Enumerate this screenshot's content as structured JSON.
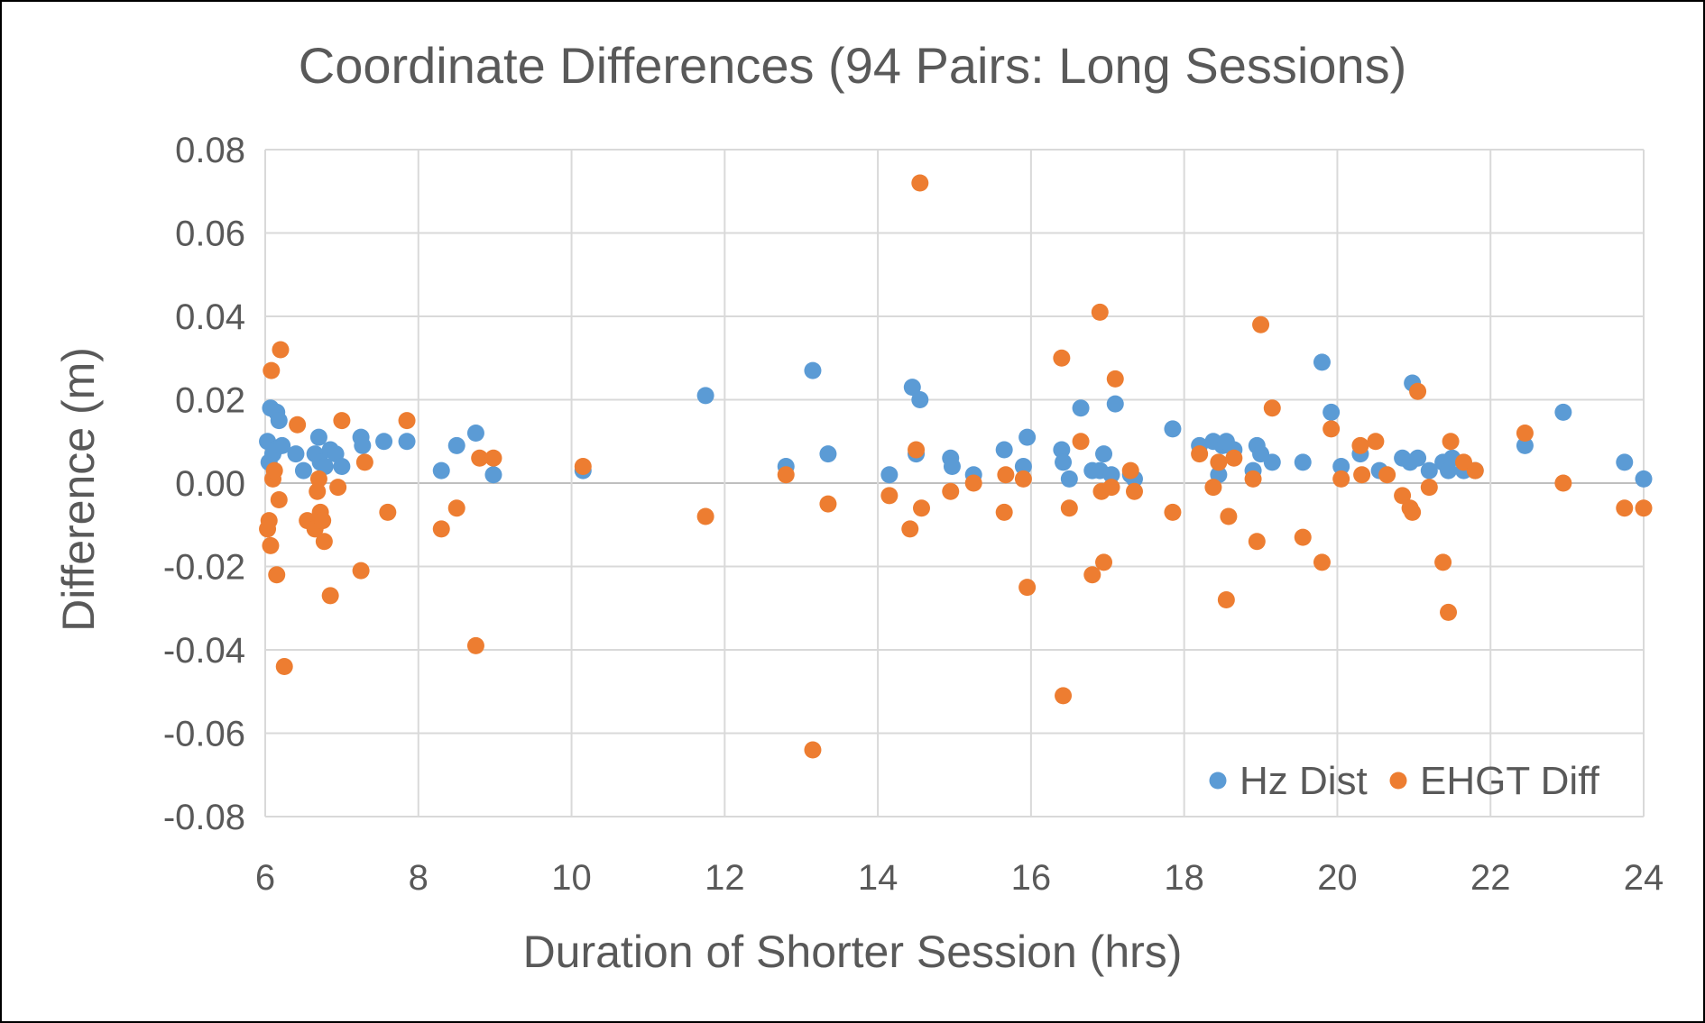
{
  "chart_data": {
    "type": "scatter",
    "title": "Coordinate Differences (94 Pairs: Long Sessions)",
    "xlabel": "Duration of Shorter Session (hrs)",
    "ylabel": "Difference (m)",
    "xlim": [
      6,
      24
    ],
    "ylim": [
      -0.08,
      0.08
    ],
    "x_ticks": [
      "6",
      "8",
      "10",
      "12",
      "14",
      "16",
      "18",
      "20",
      "22",
      "24"
    ],
    "y_ticks": [
      "0.08",
      "0.06",
      "0.04",
      "0.02",
      "0.00",
      "-0.02",
      "-0.04",
      "-0.06",
      "-0.08"
    ],
    "grid": true,
    "legend_position": "bottom-right",
    "series": [
      {
        "name": "Hz Dist",
        "color": "#5b9bd5",
        "points": [
          [
            6.03,
            0.01
          ],
          [
            6.05,
            0.005
          ],
          [
            6.07,
            0.018
          ],
          [
            6.1,
            0.007
          ],
          [
            6.12,
            0.008
          ],
          [
            6.15,
            0.017
          ],
          [
            6.18,
            0.015
          ],
          [
            6.22,
            0.009
          ],
          [
            6.4,
            0.007
          ],
          [
            6.5,
            0.003
          ],
          [
            6.65,
            0.007
          ],
          [
            6.7,
            0.011
          ],
          [
            6.72,
            0.005
          ],
          [
            6.78,
            0.004
          ],
          [
            6.85,
            0.008
          ],
          [
            6.92,
            0.007
          ],
          [
            7.0,
            0.004
          ],
          [
            7.25,
            0.011
          ],
          [
            7.27,
            0.009
          ],
          [
            7.55,
            0.01
          ],
          [
            7.85,
            0.01
          ],
          [
            8.3,
            0.003
          ],
          [
            8.5,
            0.009
          ],
          [
            8.75,
            0.012
          ],
          [
            8.98,
            0.002
          ],
          [
            10.15,
            0.003
          ],
          [
            11.75,
            0.021
          ],
          [
            12.8,
            0.004
          ],
          [
            13.15,
            0.027
          ],
          [
            13.35,
            0.007
          ],
          [
            14.15,
            0.002
          ],
          [
            14.45,
            0.023
          ],
          [
            14.5,
            0.007
          ],
          [
            14.55,
            0.02
          ],
          [
            14.95,
            0.006
          ],
          [
            14.97,
            0.004
          ],
          [
            15.25,
            0.002
          ],
          [
            15.65,
            0.008
          ],
          [
            15.9,
            0.004
          ],
          [
            15.95,
            0.011
          ],
          [
            16.4,
            0.008
          ],
          [
            16.42,
            0.005
          ],
          [
            16.5,
            0.001
          ],
          [
            16.65,
            0.018
          ],
          [
            16.8,
            0.003
          ],
          [
            16.9,
            0.003
          ],
          [
            16.95,
            0.007
          ],
          [
            17.05,
            0.002
          ],
          [
            17.1,
            0.019
          ],
          [
            17.3,
            0.002
          ],
          [
            17.35,
            0.001
          ],
          [
            17.85,
            0.013
          ],
          [
            18.2,
            0.009
          ],
          [
            18.38,
            0.01
          ],
          [
            18.45,
            0.002
          ],
          [
            18.5,
            0.009
          ],
          [
            18.55,
            0.01
          ],
          [
            18.65,
            0.008
          ],
          [
            18.9,
            0.003
          ],
          [
            18.95,
            0.009
          ],
          [
            19.0,
            0.007
          ],
          [
            19.15,
            0.005
          ],
          [
            19.55,
            0.005
          ],
          [
            19.8,
            0.029
          ],
          [
            19.92,
            0.017
          ],
          [
            20.05,
            0.004
          ],
          [
            20.3,
            0.007
          ],
          [
            20.55,
            0.003
          ],
          [
            20.85,
            0.006
          ],
          [
            20.95,
            0.005
          ],
          [
            20.98,
            0.024
          ],
          [
            21.05,
            0.006
          ],
          [
            21.2,
            0.003
          ],
          [
            21.38,
            0.005
          ],
          [
            21.45,
            0.003
          ],
          [
            21.5,
            0.006
          ],
          [
            21.65,
            0.003
          ],
          [
            21.8,
            0.003
          ],
          [
            22.45,
            0.009
          ],
          [
            22.95,
            0.017
          ],
          [
            23.75,
            0.005
          ],
          [
            24.0,
            0.001
          ]
        ]
      },
      {
        "name": "EHGT Diff",
        "color": "#ed7d31",
        "points": [
          [
            6.03,
            -0.011
          ],
          [
            6.05,
            -0.009
          ],
          [
            6.07,
            -0.015
          ],
          [
            6.08,
            0.027
          ],
          [
            6.1,
            0.001
          ],
          [
            6.12,
            0.003
          ],
          [
            6.15,
            -0.022
          ],
          [
            6.18,
            -0.004
          ],
          [
            6.2,
            0.032
          ],
          [
            6.25,
            -0.044
          ],
          [
            6.42,
            0.014
          ],
          [
            6.55,
            -0.009
          ],
          [
            6.65,
            -0.011
          ],
          [
            6.68,
            -0.002
          ],
          [
            6.7,
            0.001
          ],
          [
            6.72,
            -0.007
          ],
          [
            6.75,
            -0.009
          ],
          [
            6.77,
            -0.014
          ],
          [
            6.85,
            -0.027
          ],
          [
            6.95,
            -0.001
          ],
          [
            7.0,
            0.015
          ],
          [
            7.25,
            -0.021
          ],
          [
            7.3,
            0.005
          ],
          [
            7.6,
            -0.007
          ],
          [
            7.85,
            0.015
          ],
          [
            8.3,
            -0.011
          ],
          [
            8.5,
            -0.006
          ],
          [
            8.75,
            -0.039
          ],
          [
            8.8,
            0.006
          ],
          [
            8.98,
            0.006
          ],
          [
            10.15,
            0.004
          ],
          [
            11.75,
            -0.008
          ],
          [
            12.8,
            0.002
          ],
          [
            13.15,
            -0.064
          ],
          [
            13.35,
            -0.005
          ],
          [
            14.15,
            -0.003
          ],
          [
            14.42,
            -0.011
          ],
          [
            14.5,
            0.008
          ],
          [
            14.55,
            0.072
          ],
          [
            14.57,
            -0.006
          ],
          [
            14.95,
            -0.002
          ],
          [
            15.25,
            0.0
          ],
          [
            15.65,
            -0.007
          ],
          [
            15.67,
            0.002
          ],
          [
            15.9,
            0.001
          ],
          [
            15.95,
            -0.025
          ],
          [
            16.4,
            0.03
          ],
          [
            16.42,
            -0.051
          ],
          [
            16.5,
            -0.006
          ],
          [
            16.65,
            0.01
          ],
          [
            16.8,
            -0.022
          ],
          [
            16.9,
            0.041
          ],
          [
            16.92,
            -0.002
          ],
          [
            16.95,
            -0.019
          ],
          [
            17.05,
            -0.001
          ],
          [
            17.1,
            0.025
          ],
          [
            17.3,
            0.003
          ],
          [
            17.35,
            -0.002
          ],
          [
            17.85,
            -0.007
          ],
          [
            18.2,
            0.007
          ],
          [
            18.38,
            -0.001
          ],
          [
            18.45,
            0.005
          ],
          [
            18.55,
            -0.028
          ],
          [
            18.58,
            -0.008
          ],
          [
            18.65,
            0.006
          ],
          [
            18.9,
            0.001
          ],
          [
            18.95,
            -0.014
          ],
          [
            19.0,
            0.038
          ],
          [
            19.15,
            0.018
          ],
          [
            19.55,
            -0.013
          ],
          [
            19.8,
            -0.019
          ],
          [
            19.92,
            0.013
          ],
          [
            20.05,
            0.001
          ],
          [
            20.3,
            0.009
          ],
          [
            20.32,
            0.002
          ],
          [
            20.5,
            0.01
          ],
          [
            20.65,
            0.002
          ],
          [
            20.85,
            -0.003
          ],
          [
            20.95,
            -0.006
          ],
          [
            20.98,
            -0.007
          ],
          [
            21.05,
            0.022
          ],
          [
            21.2,
            -0.001
          ],
          [
            21.38,
            -0.019
          ],
          [
            21.45,
            -0.031
          ],
          [
            21.48,
            0.01
          ],
          [
            21.65,
            0.005
          ],
          [
            21.8,
            0.003
          ],
          [
            22.45,
            0.012
          ],
          [
            22.95,
            0.0
          ],
          [
            23.75,
            -0.006
          ],
          [
            24.0,
            -0.006
          ]
        ]
      }
    ]
  }
}
